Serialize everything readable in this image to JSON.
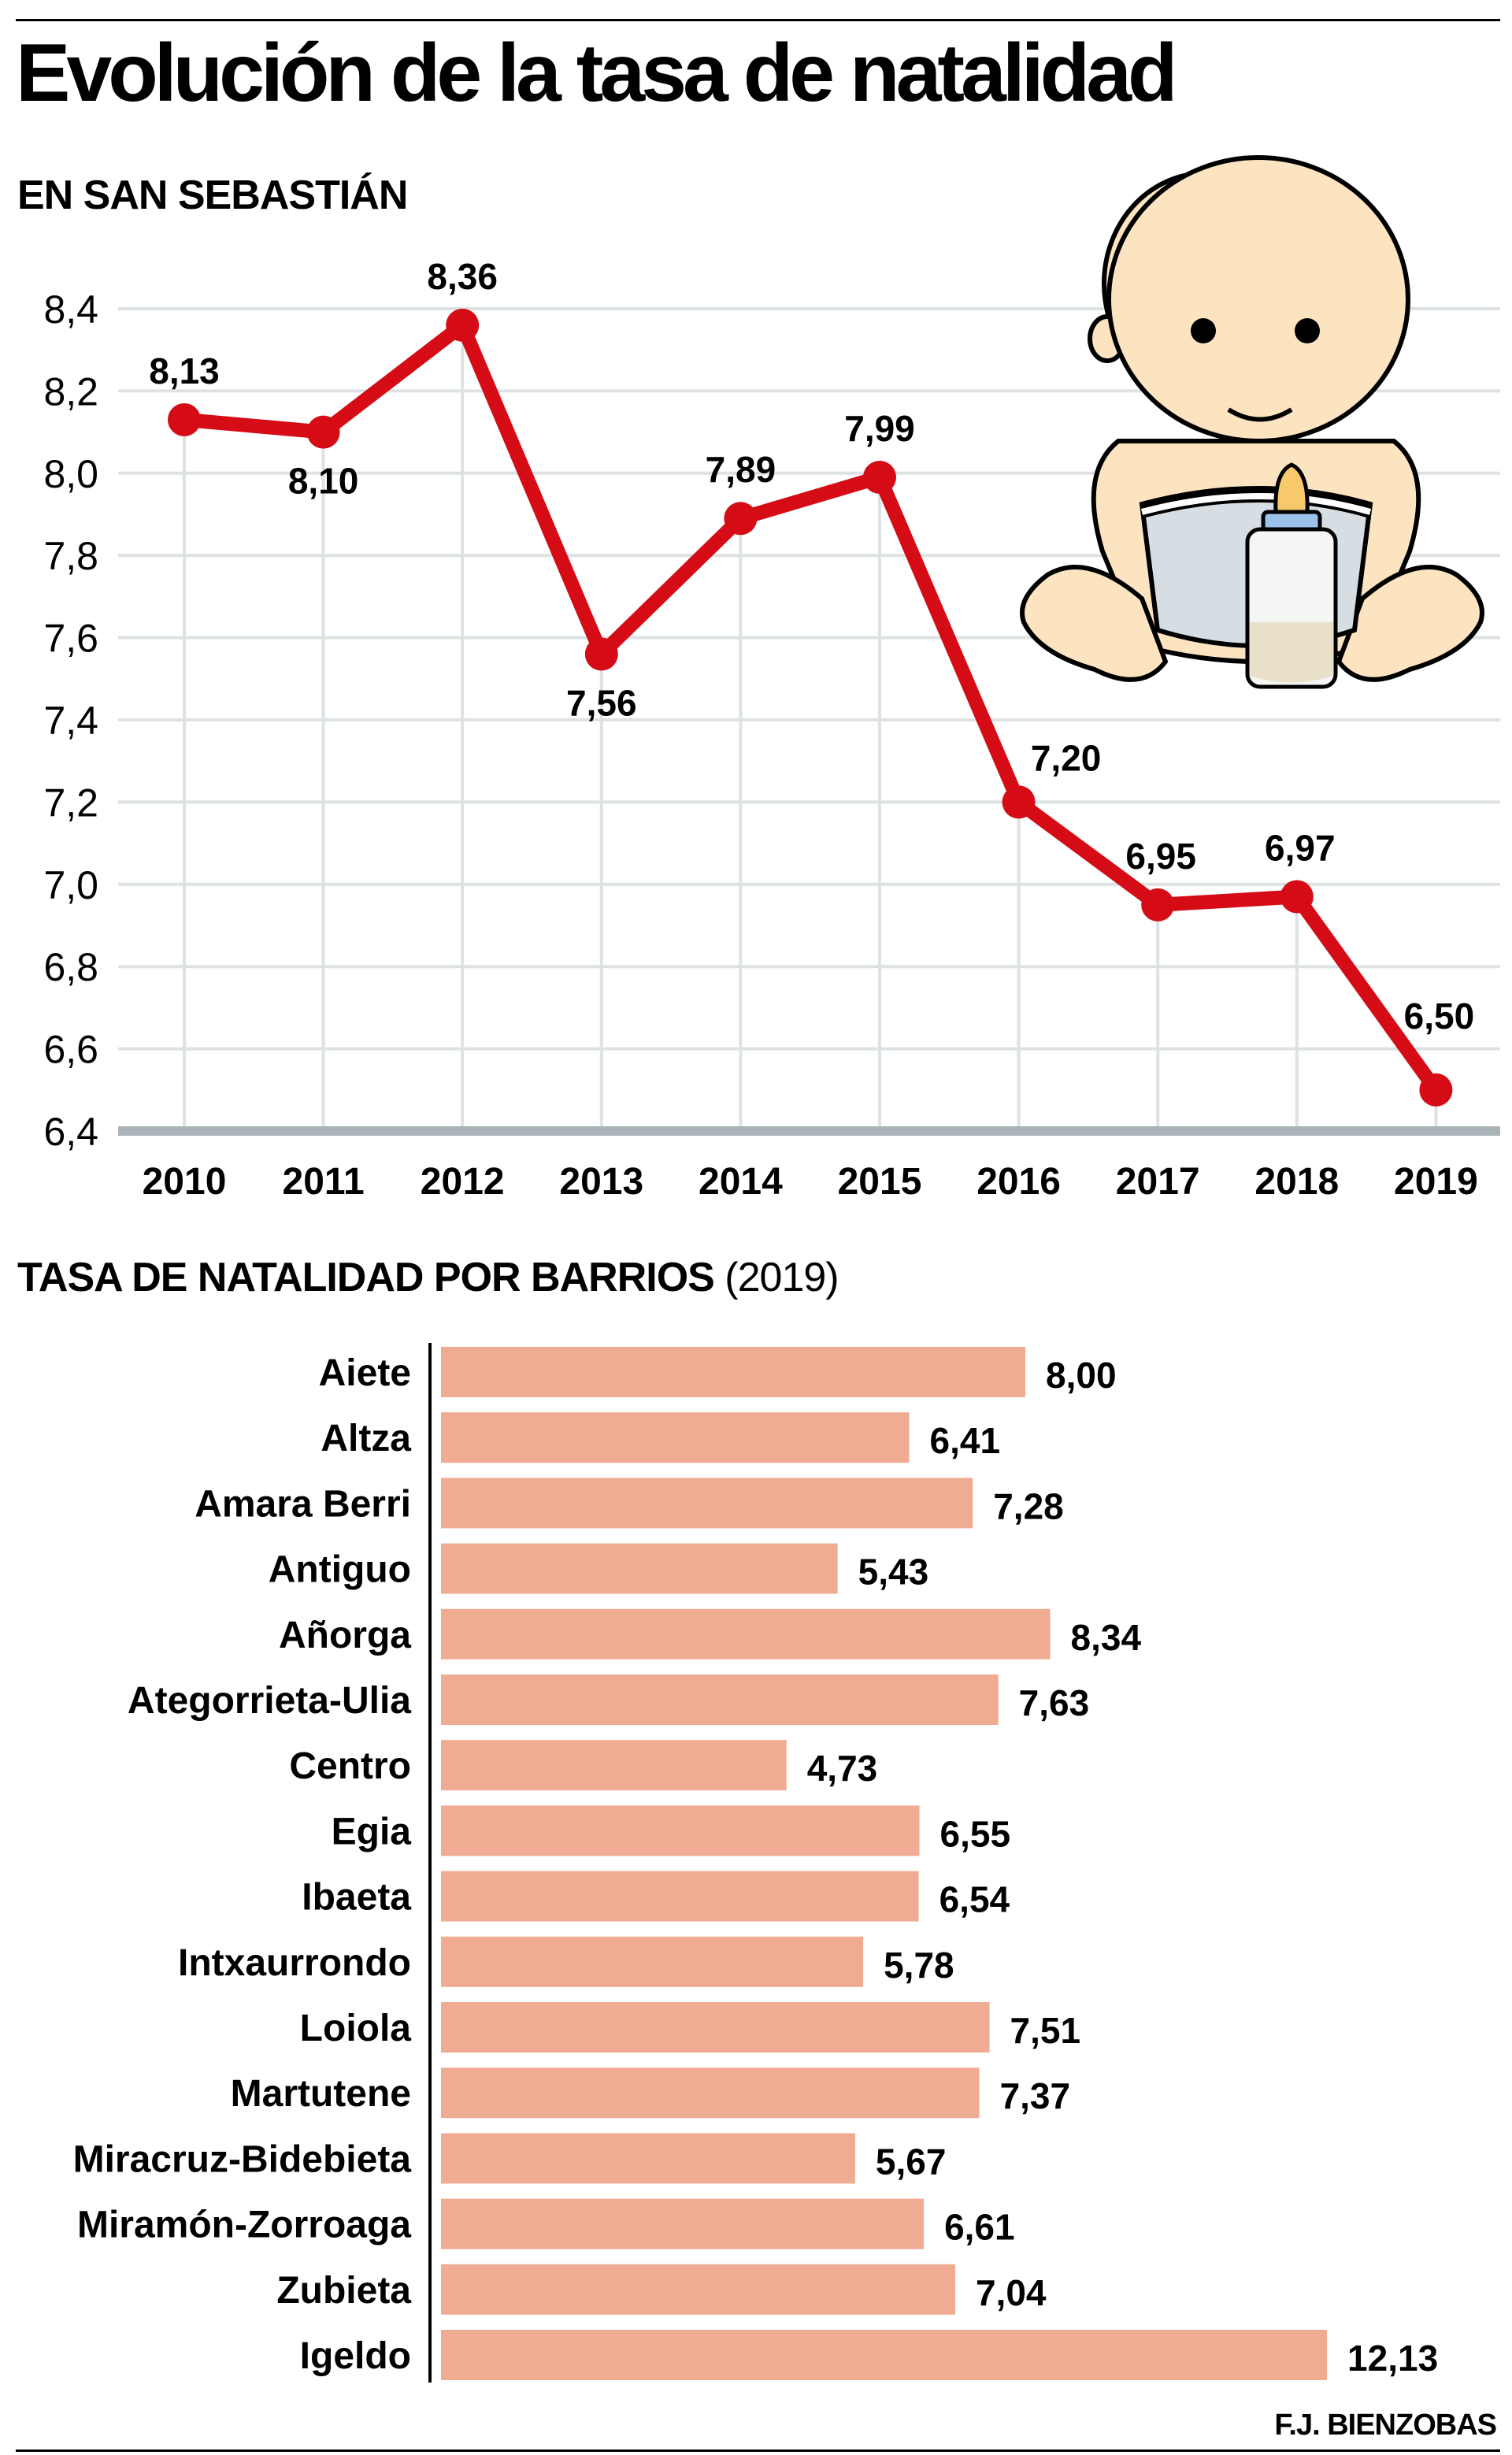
{
  "title": "Evolución de la tasa de natalidad",
  "credit": "F.J. BIENZOBAS",
  "colors": {
    "line": "#d50c16",
    "bar": "#efac93",
    "grid": "#dde2e4",
    "axis": "#a9b3b8"
  },
  "illustration": "baby-with-bottle",
  "chart_data": [
    {
      "type": "line",
      "title": "EN SAN SEBASTIÁN",
      "x": [
        "2010",
        "2011",
        "2012",
        "2013",
        "2014",
        "2015",
        "2016",
        "2017",
        "2018",
        "2019"
      ],
      "values": [
        8.13,
        8.1,
        8.36,
        7.56,
        7.89,
        7.99,
        7.2,
        6.95,
        6.97,
        6.5
      ],
      "data_labels": [
        "8,13",
        "8,10",
        "8,36",
        "7,56",
        "7,89",
        "7,99",
        "7,20",
        "6,95",
        "6,97",
        "6,50"
      ],
      "ylim": [
        6.4,
        8.4
      ],
      "yticks": [
        "6,4",
        "6,6",
        "6,8",
        "7,0",
        "7,2",
        "7,4",
        "7,6",
        "7,8",
        "8,0",
        "8,2",
        "8,4"
      ],
      "grid": true
    },
    {
      "type": "bar",
      "orientation": "horizontal",
      "title": "TASA DE NATALIDAD POR BARRIOS",
      "title_note": "(2019)",
      "categories": [
        "Aiete",
        "Altza",
        "Amara Berri",
        "Antiguo",
        "Añorga",
        "Ategorrieta-Ulia",
        "Centro",
        "Egia",
        "Ibaeta",
        "Intxaurrondo",
        "Loiola",
        "Martutene",
        "Miracruz-Bidebieta",
        "Miramón-Zorroaga",
        "Zubieta",
        "Igeldo"
      ],
      "values": [
        8.0,
        6.41,
        7.28,
        5.43,
        8.34,
        7.63,
        4.73,
        6.55,
        6.54,
        5.78,
        7.51,
        7.37,
        5.67,
        6.61,
        7.04,
        12.13
      ],
      "data_labels": [
        "8,00",
        "6,41",
        "7,28",
        "5,43",
        "8,34",
        "7,63",
        "4,73",
        "6,55",
        "6,54",
        "5,78",
        "7,51",
        "7,37",
        "5,67",
        "6,61",
        "7,04",
        "12,13"
      ]
    }
  ]
}
